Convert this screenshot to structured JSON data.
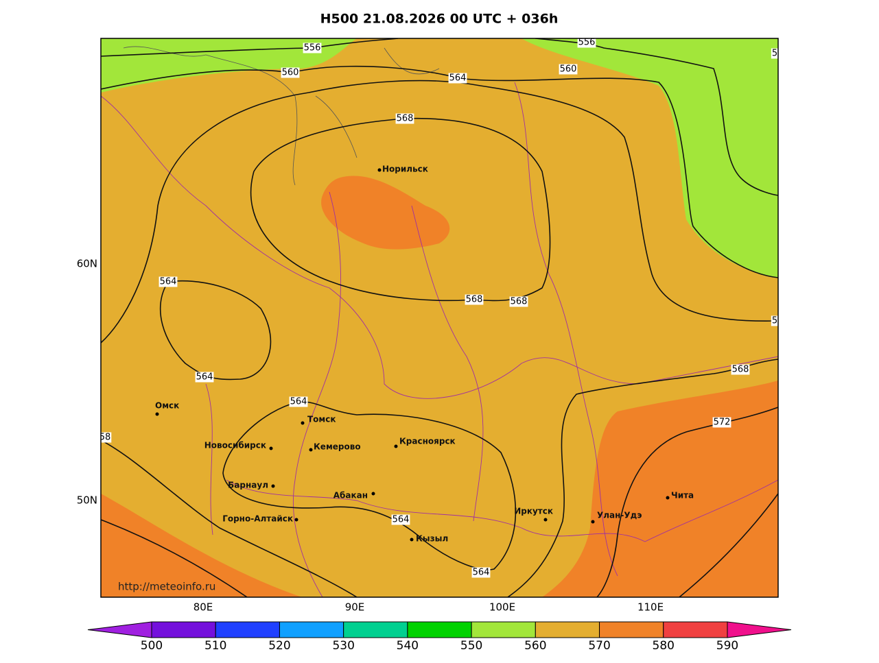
{
  "title": "H500  21.08.2026 00 UTC + 036h",
  "url": "http://meteoinfo.ru",
  "lat_labels": [
    "60N",
    "50N"
  ],
  "lon_labels": [
    "80E",
    "90E",
    "100E",
    "110E"
  ],
  "fill_colors": {
    "green": "#a2e63a",
    "base": "#e4ae30",
    "orange": "#f08228"
  },
  "contour_labels": [
    "556",
    "560",
    "564",
    "568",
    "556",
    "560",
    "5",
    "568",
    "568",
    "564",
    "564",
    "564",
    "5",
    "568",
    "572",
    "58",
    "564",
    "564"
  ],
  "cities": [
    "Норильск",
    "Омск",
    "Томск",
    "Новосибирск",
    "Кемерово",
    "Красноярск",
    "Барнаул",
    "Абакан",
    "Горно-Алтайск",
    "Кызыл",
    "Иркутск",
    "Улан-Удэ",
    "Чита"
  ],
  "colorbar": {
    "ticks": [
      500,
      510,
      520,
      530,
      540,
      550,
      560,
      570,
      580,
      590
    ],
    "colors": [
      "#a020e0",
      "#7410dc",
      "#2040ff",
      "#10a0ff",
      "#00d090",
      "#00d200",
      "#a2e63a",
      "#e4ae30",
      "#f08228",
      "#f04040",
      "#f0108c"
    ]
  }
}
